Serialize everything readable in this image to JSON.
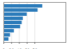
{
  "chart_data": {
    "type": "bar",
    "orientation": "horizontal",
    "categories": [
      null,
      null,
      null,
      null,
      null,
      null,
      null,
      null,
      null
    ],
    "values": [
      100,
      88,
      60,
      50,
      47,
      43,
      27,
      17,
      13
    ],
    "color": "#2b7bba",
    "xlim": [
      0,
      160
    ],
    "xticks": [
      0,
      20,
      40,
      60,
      80
    ],
    "grid": true,
    "tick_labels": "x"
  }
}
